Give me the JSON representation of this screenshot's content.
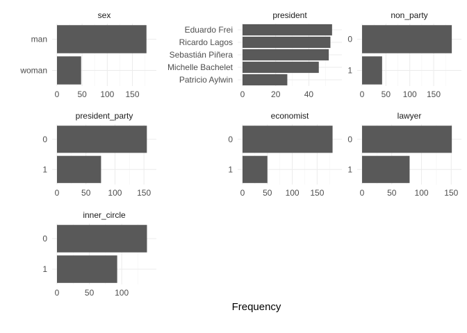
{
  "chart_data": {
    "type": "bar",
    "orientation": "horizontal",
    "xlabel": "Frequency",
    "ylabel": "",
    "grid": true,
    "bar_color": "#595959",
    "panels": [
      {
        "title": "sex",
        "categories": [
          "man",
          "woman"
        ],
        "values": [
          178,
          48
        ],
        "xlim": [
          0,
          188
        ],
        "xticks": [
          0,
          50,
          100,
          150
        ]
      },
      {
        "title": "president",
        "categories": [
          "Eduardo Frei",
          "Ricardo Lagos",
          "Sebastián Piñera",
          "Michelle Bachelet",
          "Patricio Aylwin"
        ],
        "values": [
          54,
          53,
          52,
          46,
          27
        ],
        "xlim": [
          0,
          57
        ],
        "xticks": [
          0,
          20,
          40
        ]
      },
      {
        "title": "non_party",
        "categories": [
          "0",
          "1"
        ],
        "values": [
          188,
          42
        ],
        "xlim": [
          0,
          198
        ],
        "xticks": [
          0,
          50,
          100,
          150
        ]
      },
      {
        "title": "president_party",
        "categories": [
          "0",
          "1"
        ],
        "values": [
          155,
          76
        ],
        "xlim": [
          0,
          163
        ],
        "xticks": [
          0,
          50,
          100,
          150
        ]
      },
      {
        "title": "economist",
        "categories": [
          "0",
          "1"
        ],
        "values": [
          181,
          50
        ],
        "xlim": [
          0,
          190
        ],
        "xticks": [
          0,
          50,
          100,
          150
        ]
      },
      {
        "title": "lawyer",
        "categories": [
          "0",
          "1"
        ],
        "values": [
          151,
          80
        ],
        "xlim": [
          0,
          159
        ],
        "xticks": [
          0,
          50,
          100,
          150
        ]
      },
      {
        "title": "inner_circle",
        "categories": [
          "0",
          "1"
        ],
        "values": [
          139,
          93
        ],
        "xlim": [
          0,
          146
        ],
        "xticks": [
          0,
          50,
          100
        ]
      }
    ]
  }
}
